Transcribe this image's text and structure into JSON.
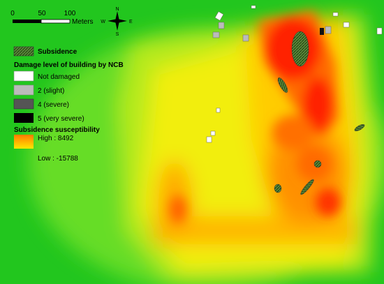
{
  "scale_bar": {
    "labels": [
      "0",
      "50",
      "100"
    ],
    "unit": "Meters"
  },
  "north_arrow": {
    "n": "N",
    "s": "S",
    "e": "E",
    "w": "W"
  },
  "legend": {
    "subsidence": "Subsidence",
    "damage_title": "Damage level of building by NCB",
    "damage_items": [
      "Not damaged",
      "2 (slight)",
      "4 (severe)",
      "5 (very severe)"
    ],
    "susceptibility_title": "Subsidence susceptibility",
    "high": "High : 8492",
    "low": "Low : -15788"
  }
}
